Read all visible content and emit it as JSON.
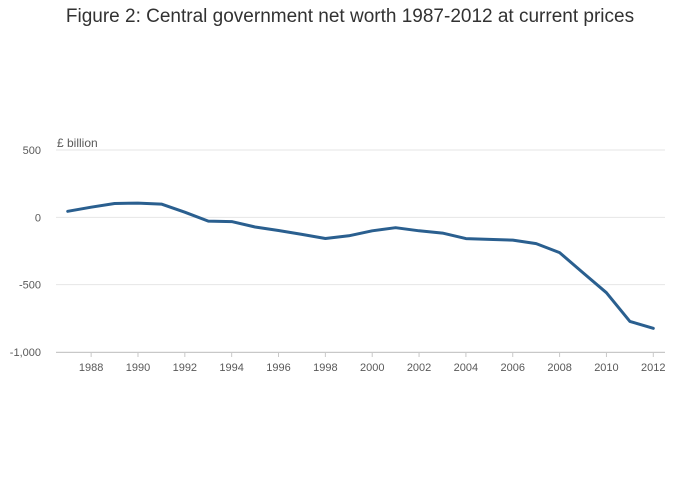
{
  "chart_data": {
    "type": "line",
    "title": "Figure 2: Central government net worth 1987-2012 at current prices",
    "ylabel": "£ billion",
    "xlabel": "",
    "xlim": [
      1986.5,
      2012.5
    ],
    "ylim": [
      -1000,
      500
    ],
    "yticks": [
      500,
      0,
      -500,
      -1000
    ],
    "ytick_labels": [
      "500",
      "0",
      "-500",
      "-1,000"
    ],
    "xticks": [
      1988,
      1990,
      1992,
      1994,
      1996,
      1998,
      2000,
      2002,
      2004,
      2006,
      2008,
      2010,
      2012
    ],
    "xtick_labels": [
      "1988",
      "1990",
      "1992",
      "1994",
      "1996",
      "1998",
      "2000",
      "2002",
      "2004",
      "2006",
      "2008",
      "2010",
      "2012"
    ],
    "grid": true,
    "series": [
      {
        "color": "#2a5f8f",
        "x": [
          1987,
          1988,
          1989,
          1990,
          1991,
          1992,
          1993,
          1994,
          1995,
          1996,
          1997,
          1998,
          1999,
          2000,
          2001,
          2002,
          2003,
          2004,
          2005,
          2006,
          2007,
          2008,
          2009,
          2010,
          2011,
          2012
        ],
        "values": [
          45,
          75,
          103,
          106,
          98,
          38,
          -28,
          -32,
          -72,
          -98,
          -127,
          -157,
          -137,
          -100,
          -77,
          -100,
          -117,
          -158,
          -164,
          -169,
          -195,
          -262,
          -412,
          -560,
          -773,
          -824
        ]
      }
    ]
  }
}
